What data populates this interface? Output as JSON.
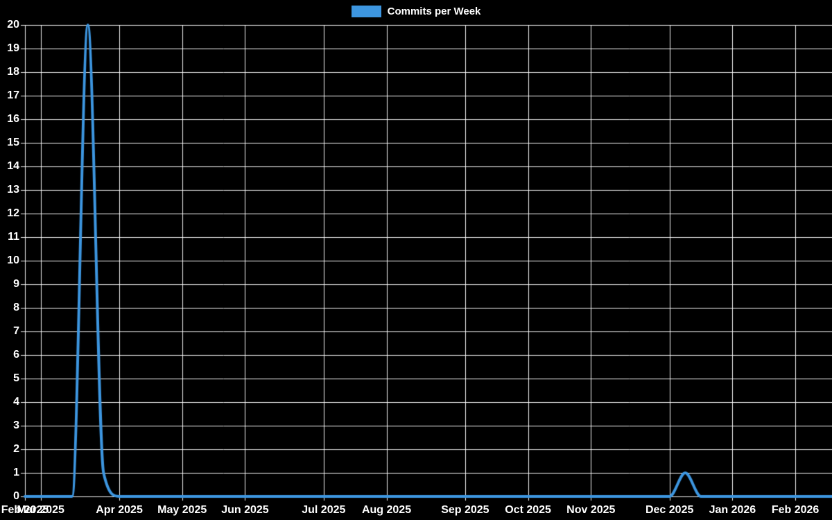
{
  "legend": {
    "label": "Commits per Week"
  },
  "colors": {
    "background": "#000000",
    "line": "#3d96e0",
    "grid": "#ffffff",
    "text": "#ffffff"
  },
  "chart_data": {
    "type": "line",
    "title": "",
    "legend_entries": [
      "Commits per Week"
    ],
    "legend_position": "top-center",
    "grid": true,
    "x_axis": {
      "unit": "weekly data points",
      "n_points": 52,
      "tick_labels": [
        "Feb 2025",
        "Mar 2025",
        "Apr 2025",
        "May 2025",
        "Jun 2025",
        "Jul 2025",
        "Aug 2025",
        "Sep 2025",
        "Oct 2025",
        "Nov 2025",
        "Dec 2025",
        "Jan 2026",
        "Feb 2026"
      ],
      "tick_point_index": [
        0,
        1,
        6,
        10,
        14,
        19,
        23,
        28,
        32,
        36,
        41,
        45,
        49
      ]
    },
    "y_axis": {
      "min": 0,
      "max": 20,
      "tick_step": 1,
      "ticks": [
        0,
        1,
        2,
        3,
        4,
        5,
        6,
        7,
        8,
        9,
        10,
        11,
        12,
        13,
        14,
        15,
        16,
        17,
        18,
        19,
        20
      ]
    },
    "series": [
      {
        "name": "Commits per Week",
        "color": "#3d96e0",
        "smoothing": "monotone",
        "values": [
          0,
          0,
          0,
          0,
          20,
          1,
          0,
          0,
          0,
          0,
          0,
          0,
          0,
          0,
          0,
          0,
          0,
          0,
          0,
          0,
          0,
          0,
          0,
          0,
          0,
          0,
          0,
          0,
          0,
          0,
          0,
          0,
          0,
          0,
          0,
          0,
          0,
          0,
          0,
          0,
          0,
          0,
          1,
          0,
          0,
          0,
          0,
          0,
          0,
          0,
          0,
          0
        ]
      }
    ]
  }
}
